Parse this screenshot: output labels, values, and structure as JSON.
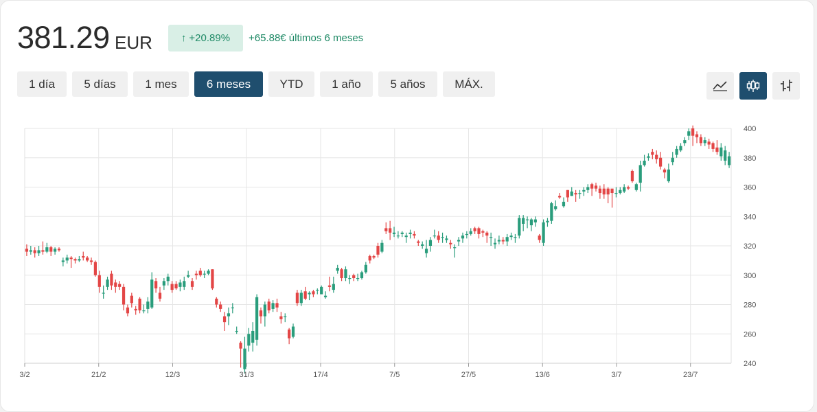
{
  "header": {
    "price": "381.29",
    "currency": "EUR",
    "change_pct": "+20.89%",
    "change_text": "+65.88€ últimos 6 meses",
    "up_color": "#1f8a66"
  },
  "ranges": {
    "items": [
      "1 día",
      "5 días",
      "1 mes",
      "6 meses",
      "YTD",
      "1 año",
      "5 años",
      "MÁX."
    ],
    "active": "6 meses"
  },
  "chart_type_buttons": [
    {
      "icon": "line-chart-icon",
      "active": false
    },
    {
      "icon": "candlestick-chart-icon",
      "active": true
    },
    {
      "icon": "ohlc-chart-icon",
      "active": false
    }
  ],
  "chart_data": {
    "type": "candlestick",
    "y_ticks": [
      240,
      260,
      280,
      300,
      320,
      340,
      360,
      380,
      400
    ],
    "ylim": [
      240,
      400
    ],
    "x_tick_labels": [
      "3/2",
      "21/2",
      "12/3",
      "31/3",
      "17/4",
      "7/5",
      "27/5",
      "13/6",
      "3/7",
      "23/7"
    ],
    "grid": true,
    "up_color": "#2a9d7c",
    "down_color": "#e34646",
    "candles": [
      [
        318,
        316,
        321,
        313
      ],
      [
        316,
        317,
        320,
        314
      ],
      [
        317,
        315,
        319,
        312
      ],
      [
        315,
        317,
        320,
        313
      ],
      [
        317,
        316,
        323,
        314
      ],
      [
        316,
        319,
        322,
        315
      ],
      [
        319,
        316,
        320,
        313
      ],
      [
        316,
        318,
        319,
        314
      ],
      [
        318,
        317,
        319,
        316
      ],
      [
        309,
        310,
        312,
        306
      ],
      [
        310,
        312,
        314,
        308
      ],
      [
        312,
        311,
        313,
        305
      ],
      [
        311,
        310,
        312,
        308
      ],
      [
        310,
        311,
        313,
        309
      ],
      [
        313,
        312,
        316,
        310
      ],
      [
        312,
        310,
        313,
        309
      ],
      [
        310,
        309,
        312,
        307
      ],
      [
        309,
        300,
        310,
        299
      ],
      [
        300,
        292,
        303,
        288
      ],
      [
        288,
        288,
        293,
        284
      ],
      [
        292,
        297,
        299,
        290
      ],
      [
        301,
        293,
        303,
        290
      ],
      [
        295,
        292,
        297,
        288
      ],
      [
        294,
        292,
        296,
        290
      ],
      [
        292,
        280,
        294,
        276
      ],
      [
        278,
        274,
        280,
        272
      ],
      [
        286,
        281,
        288,
        278
      ],
      [
        277,
        276,
        279,
        273
      ],
      [
        284,
        276,
        285,
        274
      ],
      [
        276,
        276,
        280,
        274
      ],
      [
        277,
        282,
        285,
        274
      ],
      [
        278,
        297,
        302,
        277
      ],
      [
        296,
        291,
        298,
        288
      ],
      [
        288,
        284,
        292,
        282
      ],
      [
        293,
        296,
        298,
        290
      ],
      [
        296,
        299,
        301,
        293
      ],
      [
        294,
        290,
        296,
        288
      ],
      [
        294,
        291,
        296,
        290
      ],
      [
        292,
        295,
        297,
        289
      ],
      [
        292,
        296,
        299,
        290
      ],
      [
        299,
        300,
        303,
        298
      ],
      [
        296,
        292,
        298,
        290
      ],
      [
        301,
        300,
        303,
        297
      ],
      [
        303,
        300,
        305,
        299
      ],
      [
        301,
        301,
        303,
        298
      ],
      [
        301,
        303,
        304,
        300
      ],
      [
        304,
        291,
        304,
        290
      ],
      [
        284,
        280,
        285,
        278
      ],
      [
        280,
        277,
        282,
        275
      ],
      [
        272,
        268,
        275,
        262
      ],
      [
        272,
        274,
        278,
        266
      ],
      [
        278,
        278,
        281,
        274
      ],
      [
        262,
        262,
        265,
        260
      ],
      [
        254,
        250,
        255,
        237
      ],
      [
        236,
        250,
        258,
        233
      ],
      [
        252,
        260,
        264,
        248
      ],
      [
        254,
        262,
        268,
        248
      ],
      [
        256,
        285,
        287,
        252
      ],
      [
        276,
        272,
        278,
        267
      ],
      [
        272,
        280,
        282,
        265
      ],
      [
        282,
        276,
        284,
        274
      ],
      [
        277,
        281,
        283,
        275
      ],
      [
        281,
        278,
        284,
        275
      ],
      [
        272,
        270,
        275,
        267
      ],
      [
        272,
        272,
        274,
        268
      ],
      [
        263,
        257,
        264,
        253
      ],
      [
        258,
        265,
        267,
        257
      ],
      [
        288,
        281,
        290,
        279
      ],
      [
        281,
        288,
        290,
        279
      ],
      [
        289,
        284,
        292,
        283
      ],
      [
        287,
        288,
        289,
        283
      ],
      [
        289,
        287,
        290,
        285
      ],
      [
        290,
        290,
        291,
        287
      ],
      [
        287,
        292,
        293,
        287
      ],
      [
        285,
        286,
        289,
        284
      ],
      [
        293,
        292,
        299,
        289
      ],
      [
        290,
        294,
        299,
        288
      ],
      [
        303,
        305,
        307,
        301
      ],
      [
        304,
        298,
        305,
        296
      ],
      [
        298,
        304,
        306,
        296
      ],
      [
        298,
        298,
        300,
        294
      ],
      [
        300,
        298,
        301,
        296
      ],
      [
        298,
        298,
        301,
        296
      ],
      [
        298,
        302,
        303,
        297
      ],
      [
        302,
        307,
        309,
        301
      ],
      [
        313,
        310,
        314,
        308
      ],
      [
        313,
        312,
        314,
        311
      ],
      [
        320,
        314,
        322,
        312
      ],
      [
        316,
        322,
        324,
        315
      ],
      [
        332,
        330,
        336,
        328
      ],
      [
        332,
        329,
        337,
        324
      ],
      [
        328,
        329,
        333,
        326
      ],
      [
        327,
        327,
        330,
        325
      ],
      [
        328,
        329,
        330,
        326
      ],
      [
        326,
        327,
        329,
        322
      ],
      [
        328,
        329,
        331,
        325
      ],
      [
        328,
        327,
        330,
        325
      ],
      [
        323,
        322,
        324,
        320
      ],
      [
        320,
        321,
        323,
        318
      ],
      [
        315,
        318,
        324,
        312
      ],
      [
        320,
        324,
        326,
        316
      ],
      [
        327,
        327,
        331,
        325
      ],
      [
        327,
        324,
        330,
        322
      ],
      [
        326,
        326,
        329,
        322
      ],
      [
        324,
        325,
        327,
        322
      ],
      [
        322,
        321,
        324,
        318
      ],
      [
        319,
        319,
        321,
        312
      ],
      [
        323,
        324,
        326,
        320
      ],
      [
        325,
        327,
        329,
        322
      ],
      [
        328,
        328,
        330,
        325
      ],
      [
        328,
        330,
        332,
        327
      ],
      [
        332,
        330,
        333,
        328
      ],
      [
        332,
        328,
        333,
        325
      ],
      [
        330,
        329,
        331,
        326
      ],
      [
        329,
        327,
        330,
        322
      ],
      [
        326,
        326,
        329,
        320
      ],
      [
        321,
        322,
        325,
        318
      ],
      [
        323,
        324,
        327,
        321
      ],
      [
        324,
        323,
        326,
        321
      ],
      [
        323,
        326,
        328,
        320
      ],
      [
        326,
        327,
        329,
        324
      ],
      [
        326,
        326,
        328,
        322
      ],
      [
        327,
        339,
        341,
        325
      ],
      [
        335,
        339,
        341,
        330
      ],
      [
        338,
        338,
        340,
        332
      ],
      [
        334,
        338,
        339,
        330
      ],
      [
        336,
        338,
        340,
        333
      ],
      [
        327,
        324,
        328,
        322
      ],
      [
        322,
        336,
        338,
        320
      ],
      [
        336,
        337,
        339,
        333
      ],
      [
        337,
        349,
        350,
        335
      ],
      [
        345,
        347,
        351,
        344
      ],
      [
        354,
        353,
        356,
        352
      ],
      [
        347,
        350,
        353,
        346
      ],
      [
        358,
        353,
        358,
        350
      ],
      [
        354,
        357,
        360,
        354
      ],
      [
        356,
        355,
        358,
        350
      ],
      [
        356,
        356,
        358,
        352
      ],
      [
        357,
        358,
        360,
        354
      ],
      [
        358,
        360,
        362,
        356
      ],
      [
        362,
        359,
        363,
        354
      ],
      [
        361,
        359,
        363,
        357
      ],
      [
        359,
        356,
        361,
        352
      ],
      [
        359,
        355,
        362,
        352
      ],
      [
        359,
        355,
        360,
        349
      ],
      [
        359,
        356,
        358,
        346
      ],
      [
        356,
        356,
        360,
        353
      ],
      [
        356,
        358,
        360,
        355
      ],
      [
        357,
        360,
        362,
        356
      ],
      [
        360,
        359,
        361,
        358
      ],
      [
        371,
        364,
        372,
        363
      ],
      [
        358,
        362,
        363,
        357
      ],
      [
        363,
        375,
        378,
        357
      ],
      [
        375,
        378,
        382,
        374
      ],
      [
        380,
        381,
        383,
        378
      ],
      [
        384,
        382,
        386,
        379
      ],
      [
        382,
        379,
        385,
        376
      ],
      [
        380,
        374,
        384,
        372
      ],
      [
        372,
        370,
        373,
        366
      ],
      [
        364,
        372,
        376,
        363
      ],
      [
        377,
        380,
        384,
        375
      ],
      [
        382,
        386,
        388,
        380
      ],
      [
        385,
        388,
        390,
        384
      ],
      [
        390,
        392,
        394,
        388
      ],
      [
        395,
        398,
        400,
        392
      ],
      [
        400,
        395,
        402,
        388
      ],
      [
        396,
        394,
        398,
        390
      ],
      [
        394,
        390,
        396,
        388
      ],
      [
        390,
        392,
        394,
        388
      ],
      [
        391,
        389,
        393,
        386
      ],
      [
        390,
        386,
        391,
        384
      ],
      [
        387,
        384,
        392,
        382
      ],
      [
        381,
        387,
        390,
        378
      ],
      [
        378,
        385,
        388,
        375
      ],
      [
        375,
        381,
        384,
        373
      ]
    ]
  }
}
